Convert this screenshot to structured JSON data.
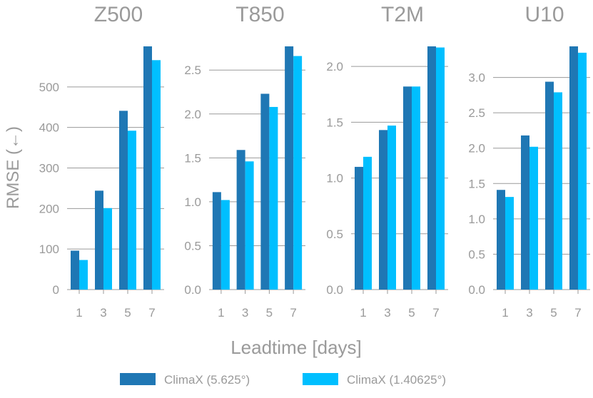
{
  "chart_data": {
    "type": "bar",
    "xlabel": "Leadtime [days]",
    "ylabel": "RMSE (←)",
    "grid": "horizontal",
    "legend": {
      "placement": "bottom",
      "entries": [
        "ClimaX (5.625°)",
        "ClimaX (1.40625°)"
      ]
    },
    "series_colors": [
      "#1f77b4",
      "#00bfff"
    ],
    "panels": [
      {
        "title": "Z500",
        "categories": [
          "1",
          "3",
          "5",
          "7"
        ],
        "ylim": [
          0,
          600
        ],
        "yticks": [
          "0",
          "100",
          "200",
          "300",
          "400",
          "500"
        ],
        "series": [
          {
            "name": "ClimaX (5.625°)",
            "values": [
              96,
              244,
              441,
              600
            ]
          },
          {
            "name": "ClimaX (1.40625°)",
            "values": [
              73,
              201,
              392,
              566
            ]
          }
        ]
      },
      {
        "title": "T850",
        "categories": [
          "1",
          "3",
          "5",
          "7"
        ],
        "ylim": [
          0,
          2.77
        ],
        "yticks": [
          "0.0",
          "0.5",
          "1.0",
          "1.5",
          "2.0",
          "2.5"
        ],
        "series": [
          {
            "name": "ClimaX (5.625°)",
            "values": [
              1.11,
              1.59,
              2.23,
              2.77
            ]
          },
          {
            "name": "ClimaX (1.40625°)",
            "values": [
              1.02,
              1.46,
              2.08,
              2.66
            ]
          }
        ]
      },
      {
        "title": "T2M",
        "categories": [
          "1",
          "3",
          "5",
          "7"
        ],
        "ylim": [
          0,
          2.18
        ],
        "yticks": [
          "0.0",
          "0.5",
          "1.0",
          "1.5",
          "2.0"
        ],
        "series": [
          {
            "name": "ClimaX (5.625°)",
            "values": [
              1.1,
              1.43,
              1.82,
              2.18
            ]
          },
          {
            "name": "ClimaX (1.40625°)",
            "values": [
              1.19,
              1.47,
              1.82,
              2.17
            ]
          }
        ]
      },
      {
        "title": "U10",
        "categories": [
          "1",
          "3",
          "5",
          "7"
        ],
        "ylim": [
          0,
          3.44
        ],
        "yticks": [
          "0.0",
          "0.5",
          "1.0",
          "1.5",
          "2.0",
          "2.5",
          "3.0"
        ],
        "series": [
          {
            "name": "ClimaX (5.625°)",
            "values": [
              1.41,
              2.18,
              2.94,
              3.44
            ]
          },
          {
            "name": "ClimaX (1.40625°)",
            "values": [
              1.31,
              2.02,
              2.79,
              3.35
            ]
          }
        ]
      }
    ]
  }
}
